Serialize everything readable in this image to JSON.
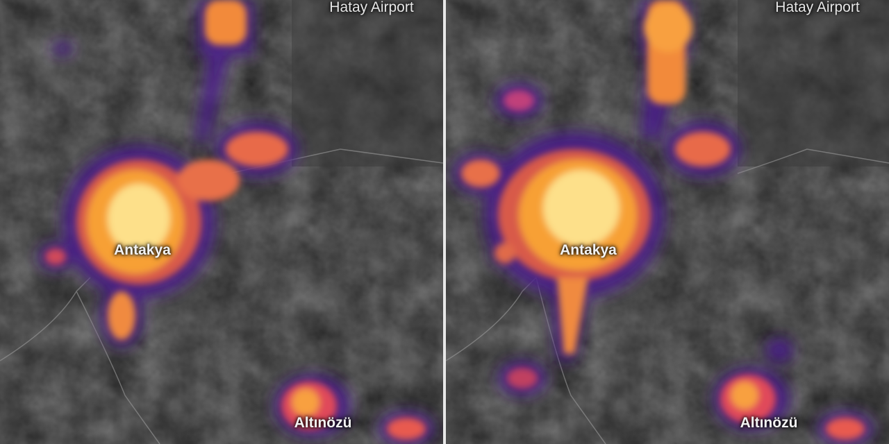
{
  "panels": [
    {
      "labels": {
        "airport": "Hatay Airport",
        "city": "Antakya",
        "town": "Altınözü"
      }
    },
    {
      "labels": {
        "airport": "Hatay Airport",
        "city": "Antakya",
        "town": "Altınözü"
      }
    }
  ],
  "colors": {
    "glow_core": "#fff3a0",
    "glow_mid": "#f7a034",
    "glow_outer": "#b2247a",
    "glow_edge": "#4a1b8a",
    "terrain": "#2b2b2b",
    "divider": "#e8e8e8"
  }
}
